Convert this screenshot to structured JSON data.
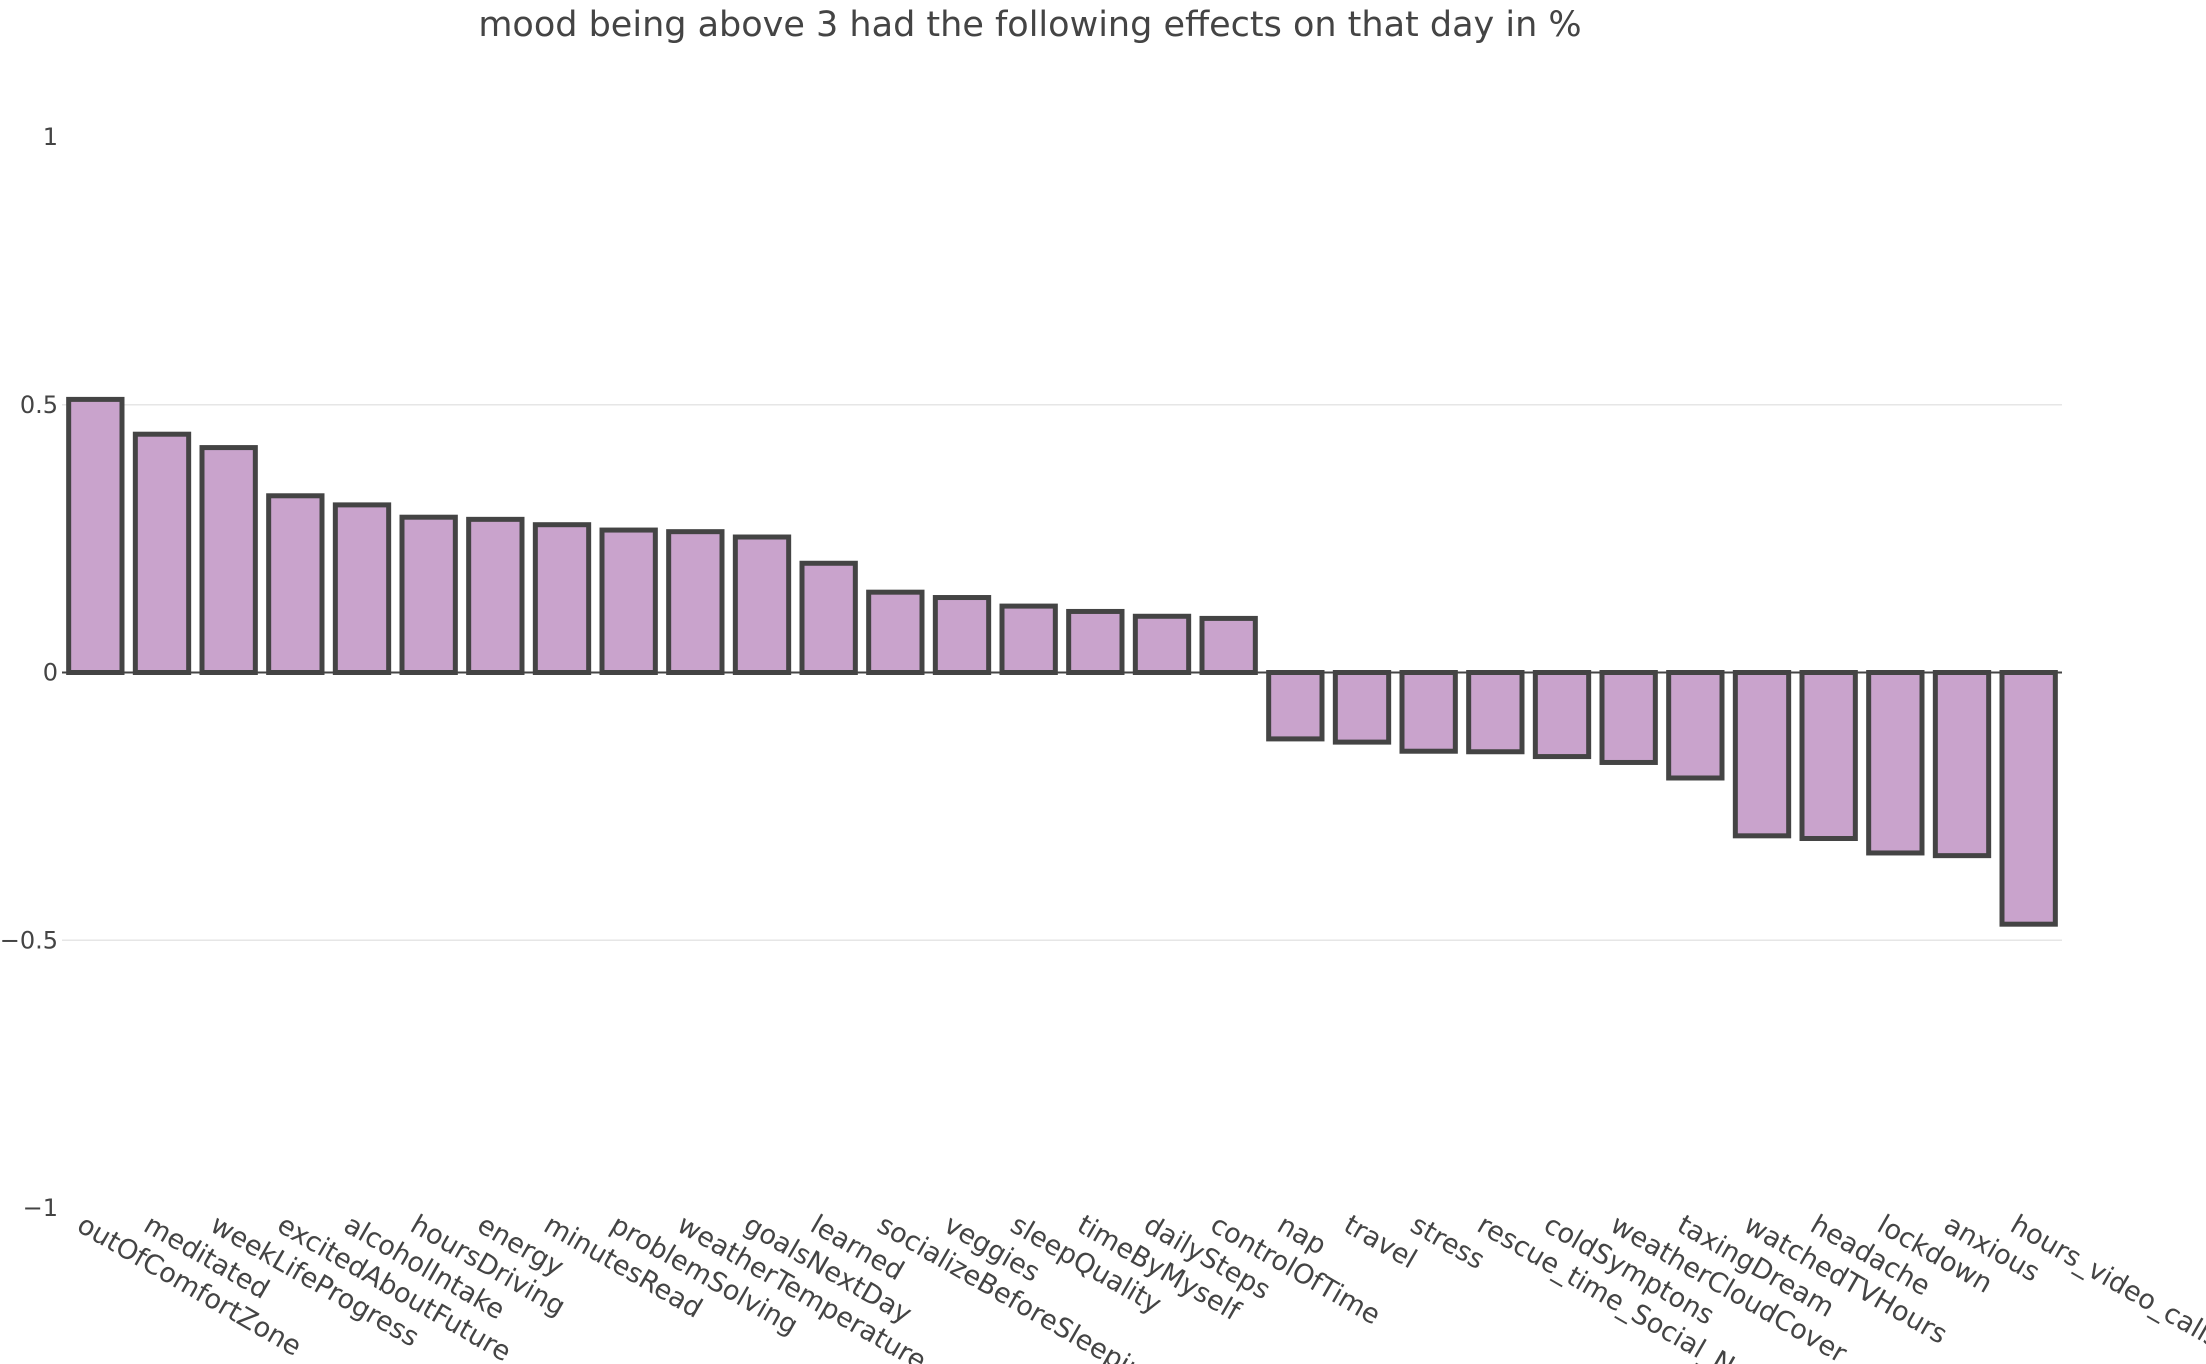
{
  "chart_data": {
    "type": "bar",
    "title": "mood being above 3 had the following effects on that day in %",
    "xlabel": "",
    "ylabel": "",
    "ylim": [
      -1,
      1
    ],
    "yticks": [
      -1,
      -0.5,
      0,
      0.5,
      1
    ],
    "ytick_labels": [
      "−1",
      "−0.5",
      "0",
      "0.5",
      "1"
    ],
    "grid": true,
    "bar_fill": "#c9a3cc",
    "bar_stroke": "#444444",
    "grid_color": "#e6e6e6",
    "categories": [
      "outOfComfortZone",
      "meditated",
      "weekLifeProgress",
      "excitedAboutFuture",
      "alcoholIntake",
      "hoursDriving",
      "energy",
      "minutesRead",
      "problemSolving",
      "weatherTemperature",
      "goalsNextDay",
      "learned",
      "socializeBeforeSleeping",
      "veggies",
      "sleepQuality",
      "timeByMyself",
      "dailySteps",
      "controlOfTime",
      "nap",
      "travel",
      "stress",
      "rescue_time_Social_Netwo",
      "coldSymptons",
      "weatherCloudCover",
      "taxingDream",
      "watchedTVHours",
      "headache",
      "lockdown",
      "anxious",
      "hours_video_calls"
    ],
    "values": [
      0.51,
      0.445,
      0.42,
      0.33,
      0.313,
      0.29,
      0.286,
      0.276,
      0.266,
      0.263,
      0.253,
      0.204,
      0.15,
      0.14,
      0.124,
      0.114,
      0.105,
      0.101,
      -0.124,
      -0.13,
      -0.147,
      -0.148,
      -0.157,
      -0.168,
      -0.197,
      -0.305,
      -0.31,
      -0.337,
      -0.342,
      -0.47
    ]
  }
}
